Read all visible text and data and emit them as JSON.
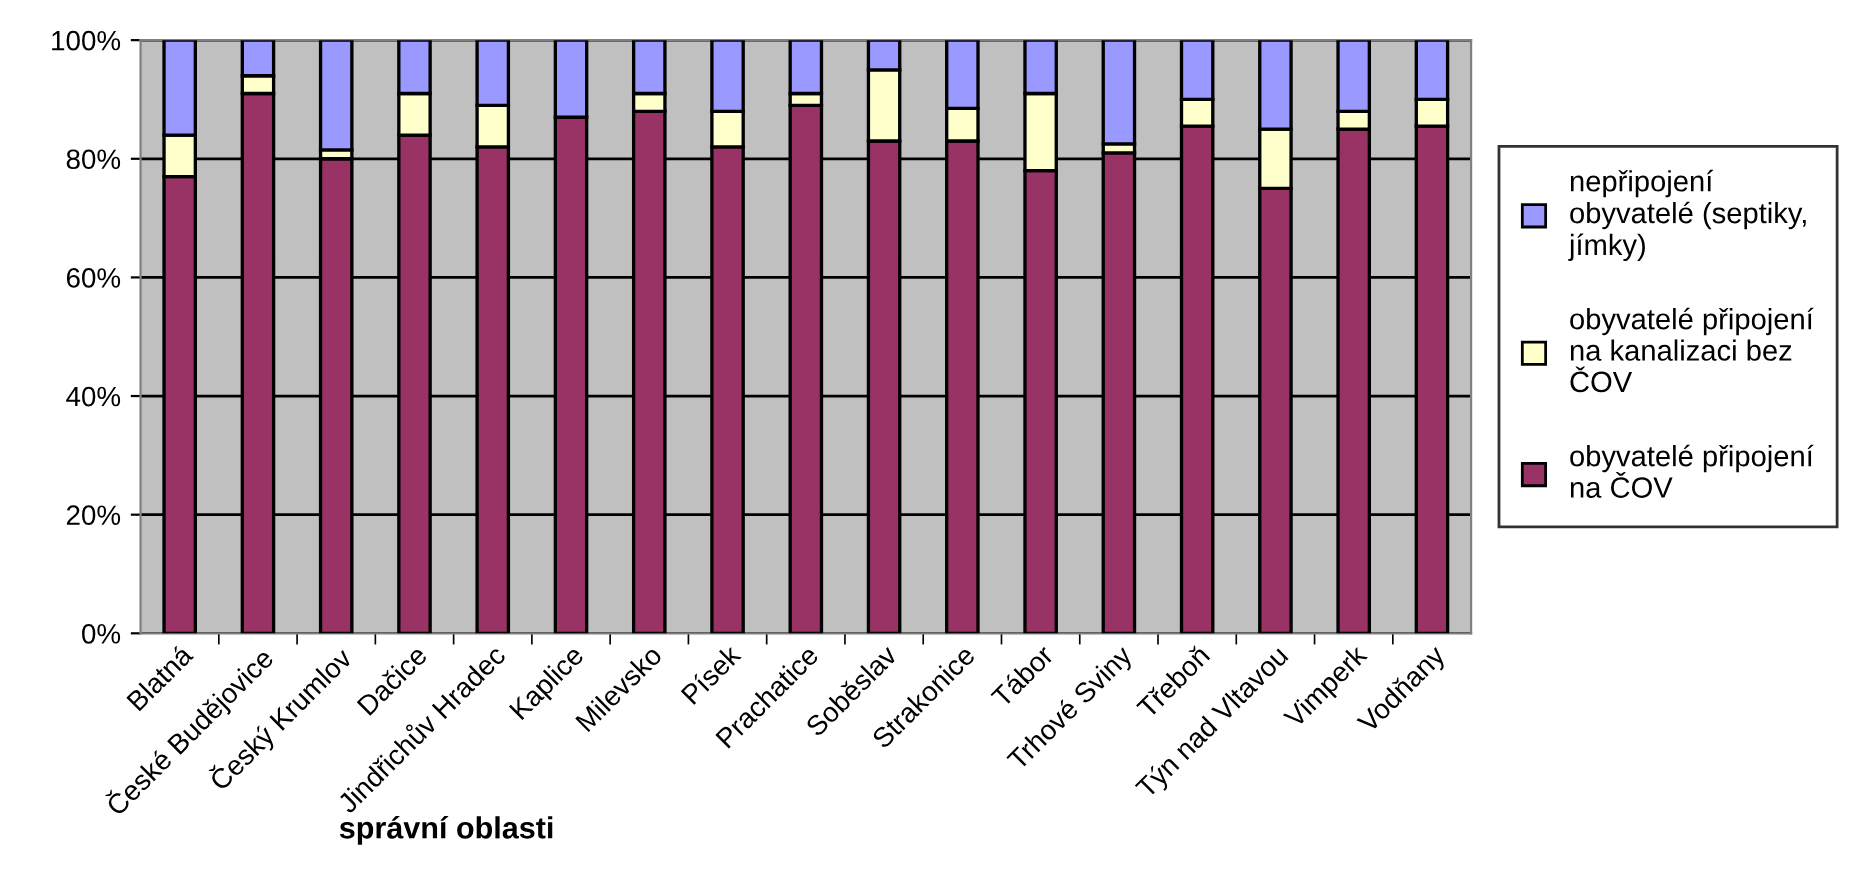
{
  "chart_data": {
    "type": "bar",
    "stacked": true,
    "xlabel": "správní oblasti",
    "categories": [
      "Blatná",
      "České Budějovice",
      "Český Krumlov",
      "Dačice",
      "Jindřichův Hradec",
      "Kaplice",
      "Milevsko",
      "Písek",
      "Prachatice",
      "Soběslav",
      "Strakonice",
      "Tábor",
      "Trhové Sviny",
      "Třeboň",
      "Týn nad Vltavou",
      "Vimperk",
      "Vodňany"
    ],
    "series": [
      {
        "name": "obyvatelé připojení na ČOV",
        "color": "#993366",
        "values": [
          77,
          91,
          80,
          84,
          82,
          87,
          88,
          82,
          89,
          83,
          83,
          78,
          81,
          85.5,
          75,
          85,
          85.5
        ]
      },
      {
        "name": "obyvatelé připojení na kanalizaci bez ČOV",
        "color": "#ffffcc",
        "values": [
          7,
          3,
          1.5,
          7,
          7,
          0,
          3,
          6,
          2,
          12,
          5.5,
          13,
          1.5,
          4.5,
          10,
          3,
          4.5
        ]
      },
      {
        "name": "nepřipojení obyvatelé (septiky, jímky)",
        "color": "#9999ff",
        "values": [
          16,
          6,
          18.5,
          9,
          11,
          13,
          9,
          12,
          9,
          5,
          11.5,
          9,
          17.5,
          10,
          15,
          12,
          10
        ]
      }
    ],
    "ylim": [
      0,
      100
    ],
    "yticks": [
      {
        "value": 0,
        "label": "0%"
      },
      {
        "value": 20,
        "label": "20%"
      },
      {
        "value": 40,
        "label": "40%"
      },
      {
        "value": 60,
        "label": "60%"
      },
      {
        "value": 80,
        "label": "80%"
      },
      {
        "value": 100,
        "label": "100%"
      }
    ],
    "grid": "y",
    "legend": "right"
  }
}
